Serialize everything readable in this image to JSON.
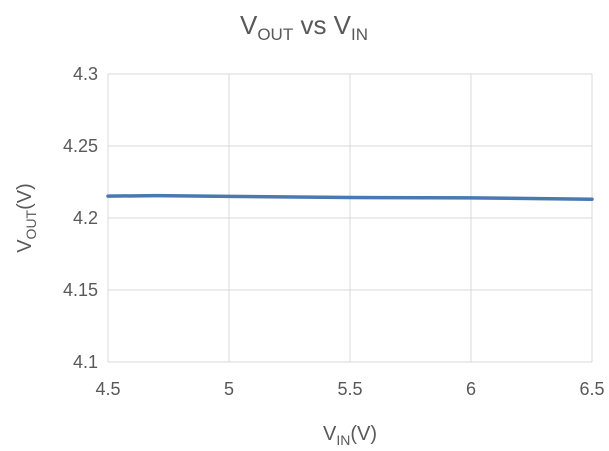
{
  "chart_data": {
    "type": "line",
    "title": {
      "main": "V",
      "sub": "OUT",
      "mid": " vs V",
      "sub2": "IN"
    },
    "xlabel": {
      "main": "V",
      "sub": "IN",
      "suffix": "(V)"
    },
    "ylabel": {
      "main": "V",
      "sub": "OUT",
      "suffix": "(V)"
    },
    "xlim": [
      4.5,
      6.5
    ],
    "ylim": [
      4.1,
      4.3
    ],
    "xticks": [
      "4.5",
      "5",
      "5.5",
      "6",
      "6.5"
    ],
    "yticks": [
      "4.1",
      "4.15",
      "4.2",
      "4.25",
      "4.3"
    ],
    "grid": true,
    "legend": "none",
    "series": [
      {
        "color": "#4a78b0",
        "x": [
          4.5,
          4.7,
          5.0,
          5.5,
          6.0,
          6.5
        ],
        "y": [
          4.2152,
          4.2155,
          4.215,
          4.2142,
          4.214,
          4.213
        ]
      }
    ]
  }
}
